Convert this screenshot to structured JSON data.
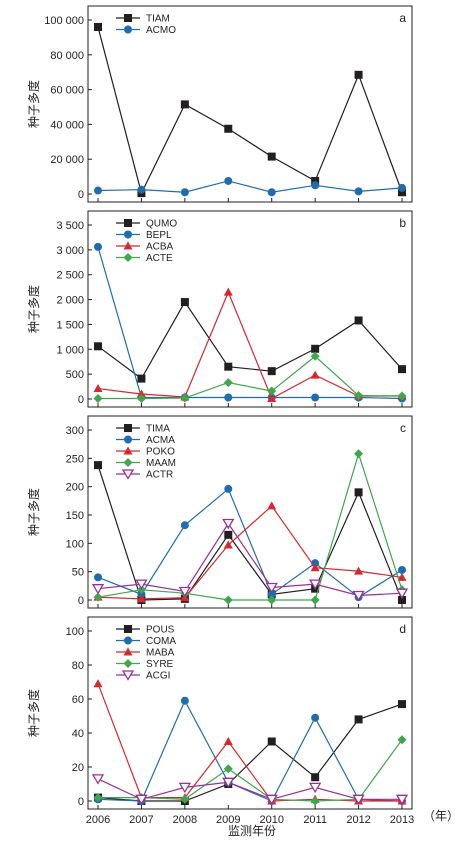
{
  "x_axis": {
    "categories": [
      "2006",
      "2007",
      "2008",
      "2009",
      "2010",
      "2011",
      "2012",
      "2013"
    ],
    "unit": "（年）",
    "label": "监测年份"
  },
  "chart_data": [
    {
      "type": "line",
      "panel_label": "a",
      "ylabel": "种子多度",
      "ylim": [
        0,
        100000
      ],
      "yticks": [
        0,
        20000,
        40000,
        60000,
        80000,
        100000
      ],
      "ytick_labels": [
        "0",
        "20 000",
        "40 000",
        "60 000",
        "80 000",
        "100 000"
      ],
      "categories": [
        "2006",
        "2007",
        "2008",
        "2009",
        "2010",
        "2011",
        "2012",
        "2013"
      ],
      "series": [
        {
          "name": "TIAM",
          "marker": "square",
          "color": "#231f20",
          "values": [
            96000,
            500,
            51500,
            37500,
            21500,
            7500,
            68500,
            1000
          ]
        },
        {
          "name": "ACMO",
          "marker": "circle",
          "color": "#1f6db1",
          "values": [
            2000,
            2500,
            1000,
            7500,
            1000,
            5000,
            1500,
            3500
          ]
        }
      ]
    },
    {
      "type": "line",
      "panel_label": "b",
      "ylabel": "种子多度",
      "ylim": [
        0,
        3500
      ],
      "yticks": [
        0,
        500,
        1000,
        1500,
        2000,
        2500,
        3000,
        3500
      ],
      "ytick_labels": [
        "0",
        "500",
        "1 000",
        "1 500",
        "2 000",
        "2 500",
        "3 000",
        "3 500"
      ],
      "categories": [
        "2006",
        "2007",
        "2008",
        "2009",
        "2010",
        "2011",
        "2012",
        "2013"
      ],
      "series": [
        {
          "name": "QUMO",
          "marker": "square",
          "color": "#231f20",
          "values": [
            1060,
            410,
            1950,
            650,
            560,
            1010,
            1580,
            600
          ]
        },
        {
          "name": "BEPL",
          "marker": "circle",
          "color": "#1f6db1",
          "values": [
            3060,
            30,
            30,
            30,
            30,
            30,
            30,
            10
          ]
        },
        {
          "name": "ACBA",
          "marker": "triangle",
          "color": "#d7282f",
          "values": [
            210,
            100,
            40,
            2150,
            10,
            480,
            60,
            60
          ]
        },
        {
          "name": "ACTE",
          "marker": "diamond",
          "color": "#3ea74b",
          "values": [
            10,
            10,
            20,
            330,
            160,
            860,
            70,
            60
          ]
        }
      ]
    },
    {
      "type": "line",
      "panel_label": "c",
      "ylabel": "种子多度",
      "ylim": [
        0,
        300
      ],
      "yticks": [
        0,
        50,
        100,
        150,
        200,
        250,
        300
      ],
      "ytick_labels": [
        "0",
        "50",
        "100",
        "150",
        "200",
        "250",
        "300"
      ],
      "categories": [
        "2006",
        "2007",
        "2008",
        "2009",
        "2010",
        "2011",
        "2012",
        "2013"
      ],
      "series": [
        {
          "name": "TIMA",
          "marker": "square",
          "color": "#231f20",
          "values": [
            238,
            0,
            2,
            115,
            10,
            20,
            190,
            0
          ]
        },
        {
          "name": "ACMA",
          "marker": "circle",
          "color": "#1f6db1",
          "values": [
            40,
            10,
            132,
            196,
            10,
            65,
            5,
            53
          ]
        },
        {
          "name": "POKO",
          "marker": "triangle",
          "color": "#d7282f",
          "values": [
            5,
            2,
            4,
            97,
            166,
            57,
            51,
            40
          ]
        },
        {
          "name": "MAAM",
          "marker": "diamond",
          "color": "#3ea74b",
          "values": [
            5,
            18,
            12,
            0,
            0,
            0,
            258,
            18
          ]
        },
        {
          "name": "ACTR",
          "marker": "triangle-down-open",
          "color": "#9b2f96",
          "values": [
            20,
            28,
            15,
            135,
            22,
            28,
            8,
            12
          ]
        }
      ]
    },
    {
      "type": "line",
      "panel_label": "d",
      "ylabel": "种子多度",
      "ylim": [
        0,
        100
      ],
      "yticks": [
        0,
        20,
        40,
        60,
        80,
        100
      ],
      "ytick_labels": [
        "0",
        "20",
        "40",
        "60",
        "80",
        "100"
      ],
      "categories": [
        "2006",
        "2007",
        "2008",
        "2009",
        "2010",
        "2011",
        "2012",
        "2013"
      ],
      "series": [
        {
          "name": "POUS",
          "marker": "square",
          "color": "#231f20",
          "values": [
            2,
            0,
            0,
            10,
            35,
            14,
            48,
            57
          ]
        },
        {
          "name": "COMA",
          "marker": "circle",
          "color": "#1f6db1",
          "values": [
            1,
            0,
            59,
            11,
            0,
            49,
            1,
            0
          ]
        },
        {
          "name": "MABA",
          "marker": "triangle",
          "color": "#d7282f",
          "values": [
            69,
            2,
            2,
            35,
            0,
            1,
            0,
            0
          ]
        },
        {
          "name": "SYRE",
          "marker": "diamond",
          "color": "#3ea74b",
          "values": [
            2,
            2,
            1,
            19,
            1,
            0,
            1,
            36
          ]
        },
        {
          "name": "ACGI",
          "marker": "triangle-down-open",
          "color": "#9b2f96",
          "values": [
            13,
            1,
            8,
            11,
            1,
            8,
            1,
            1
          ]
        }
      ]
    }
  ]
}
